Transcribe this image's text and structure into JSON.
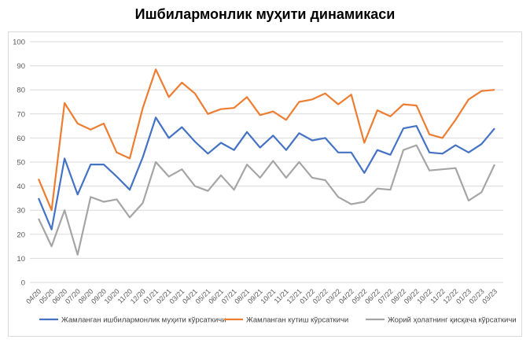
{
  "chart_data": {
    "type": "line",
    "title": "Ишбилармонлик муҳити динамикаси",
    "xlabel": "",
    "ylabel": "",
    "ylim": [
      0,
      100
    ],
    "yticks": [
      0,
      10,
      20,
      30,
      40,
      50,
      60,
      70,
      80,
      90,
      100
    ],
    "grid": true,
    "legend_position": "bottom",
    "categories": [
      "04/20",
      "05/20",
      "06/20",
      "07/20",
      "08/20",
      "09/20",
      "10/20",
      "11/20",
      "12/20",
      "01/21",
      "02/21",
      "03/21",
      "04/21",
      "05/21",
      "06/21",
      "07/21",
      "08/21",
      "09/21",
      "10/21",
      "11/21",
      "12/21",
      "01/22",
      "02/22",
      "03/22",
      "04/22",
      "05/22",
      "06/22",
      "07/22",
      "08/22",
      "09/22",
      "10/22",
      "11/22",
      "12/22",
      "01/23",
      "02/23",
      "03/23"
    ],
    "series": [
      {
        "name": "Жамланган ишбилармонлик муҳити кўрсаткичи",
        "color": "#4472c4",
        "values": [
          35,
          22,
          51.5,
          36.5,
          49,
          49,
          44,
          38.5,
          52,
          68.5,
          60,
          64.5,
          58.5,
          53.5,
          58,
          55,
          62.5,
          56,
          61,
          55,
          62,
          59,
          60,
          54,
          54,
          45.5,
          55,
          53,
          64,
          65,
          54,
          53.5,
          57,
          54,
          57.5,
          64
        ]
      },
      {
        "name": "Жамланган кутиш кўрсаткичи",
        "color": "#ed7d31",
        "values": [
          43,
          30,
          74.5,
          66,
          63.5,
          66,
          54,
          51.5,
          72.5,
          88.5,
          77,
          83,
          78.5,
          70,
          72,
          72.5,
          77,
          69.5,
          71,
          67.5,
          75,
          76,
          78.5,
          74,
          78,
          58,
          71.5,
          69,
          74,
          73.5,
          61.5,
          60,
          67.5,
          76,
          79.5,
          80
        ]
      },
      {
        "name": "Жорий ҳолатнинг қисқача кўрсаткичи",
        "color": "#a5a5a5",
        "values": [
          26.5,
          15,
          30,
          11.5,
          35.5,
          33.5,
          34.5,
          27,
          33,
          50,
          44,
          47,
          40,
          38,
          44.5,
          38.5,
          49,
          43.5,
          50.5,
          43.5,
          50,
          43.5,
          42.5,
          35.5,
          32.5,
          33.5,
          39,
          38.5,
          55,
          57,
          46.5,
          47,
          47.5,
          34,
          37.5,
          49
        ]
      }
    ]
  }
}
